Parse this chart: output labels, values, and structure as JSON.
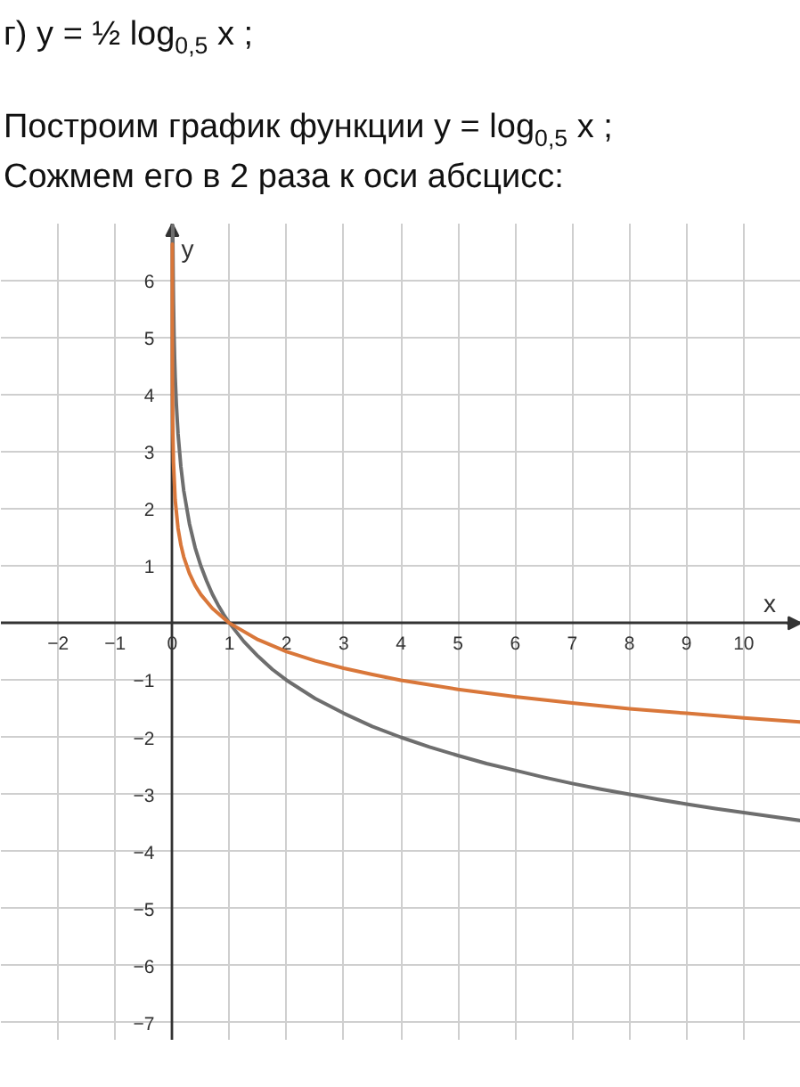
{
  "chart_data": {
    "type": "line",
    "title": "г) y = ½ log$_{0,5}$ x ;",
    "annotations": [
      "Построим график функции y = log$_{0,5}$ x ;",
      "Сожмем его в 2 раза к оси абсцисс:"
    ],
    "xlabel": "x",
    "ylabel": "y",
    "xlim": [
      -3,
      11
    ],
    "ylim": [
      -7.3,
      7
    ],
    "xticks": [
      -2,
      -1,
      0,
      1,
      2,
      3,
      4,
      5,
      6,
      7,
      8,
      9,
      10
    ],
    "yticks": [
      -7,
      -6,
      -5,
      -4,
      -3,
      -2,
      -1,
      1,
      2,
      3,
      4,
      5,
      6
    ],
    "grid": true,
    "series": [
      {
        "color": "#6e6e6e",
        "x": [
          0.008,
          0.01,
          0.015,
          0.02,
          0.03,
          0.04,
          0.05,
          0.07,
          0.1,
          0.15,
          0.2,
          0.3,
          0.4,
          0.5,
          0.6,
          0.7,
          0.8,
          0.9,
          1,
          1.25,
          1.5,
          1.75,
          2,
          2.5,
          3,
          3.5,
          4,
          4.5,
          5,
          5.5,
          6,
          6.5,
          7,
          7.5,
          8,
          8.5,
          9,
          9.5,
          10,
          10.5,
          11
        ],
        "values": [
          6.97,
          6.64,
          6.06,
          5.64,
          5.06,
          4.64,
          4.32,
          3.84,
          3.32,
          2.74,
          2.32,
          1.74,
          1.32,
          1,
          0.74,
          0.51,
          0.32,
          0.15,
          0,
          -0.32,
          -0.58,
          -0.81,
          -1,
          -1.32,
          -1.58,
          -1.81,
          -2,
          -2.17,
          -2.32,
          -2.46,
          -2.58,
          -2.7,
          -2.81,
          -2.91,
          -3,
          -3.09,
          -3.17,
          -3.25,
          -3.32,
          -3.39,
          -3.46
        ]
      },
      {
        "color": "#d9773a",
        "x": [
          0.0001,
          0.0002,
          0.0005,
          0.001,
          0.002,
          0.005,
          0.01,
          0.02,
          0.05,
          0.1,
          0.15,
          0.2,
          0.3,
          0.4,
          0.5,
          0.7,
          1,
          1.5,
          2,
          2.5,
          3,
          3.5,
          4,
          5,
          6,
          7,
          8,
          9,
          10,
          11
        ],
        "values": [
          6.64,
          6.14,
          5.48,
          4.98,
          4.48,
          3.82,
          3.32,
          2.82,
          2.16,
          1.66,
          1.37,
          1.16,
          0.87,
          0.66,
          0.5,
          0.26,
          0,
          -0.29,
          -0.5,
          -0.66,
          -0.79,
          -0.9,
          -1,
          -1.16,
          -1.29,
          -1.4,
          -1.5,
          -1.58,
          -1.66,
          -1.73
        ]
      }
    ]
  }
}
